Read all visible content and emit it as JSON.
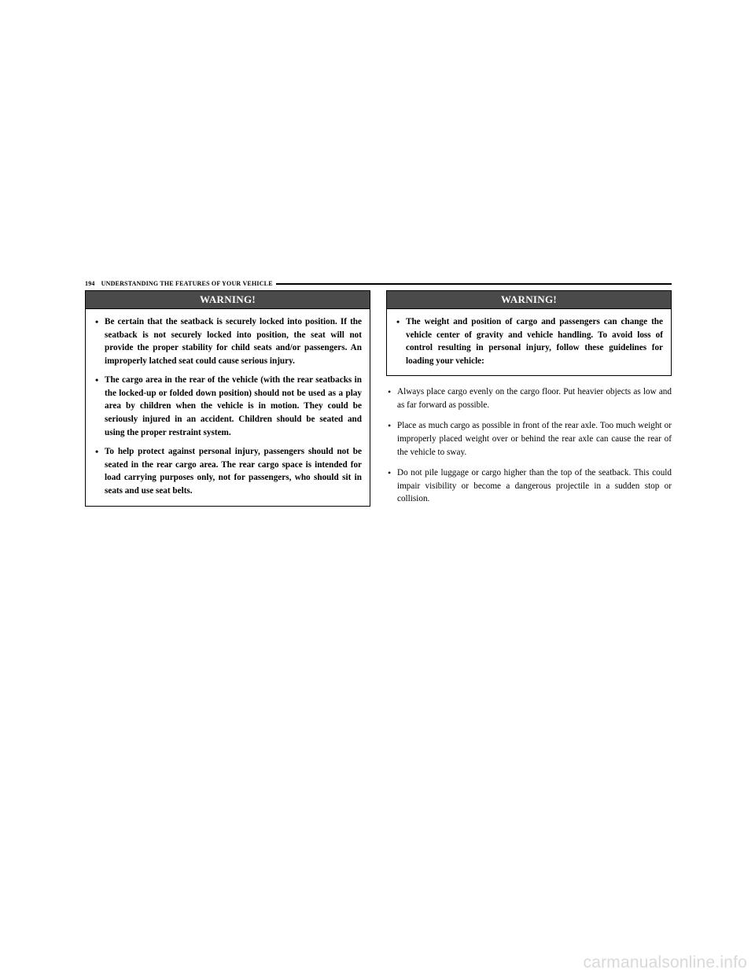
{
  "header": {
    "page_number": "194",
    "section_title": "UNDERSTANDING THE FEATURES OF YOUR VEHICLE"
  },
  "left_warning": {
    "title": "WARNING!",
    "items": [
      "Be certain that the seatback is securely locked into position. If the seatback is not securely locked into position, the seat will not provide the proper stability for child seats and/or passengers. An improperly latched seat could cause serious injury.",
      "The cargo area in the rear of the vehicle (with the rear seatbacks in the locked-up or folded down position) should not be used as a play area by children when the vehicle is in motion. They could be seriously injured in an accident. Children should be seated and using the proper restraint system.",
      "To help protect against personal injury, passengers should not be seated in the rear cargo area. The rear cargo space is intended for load carrying purposes only, not for passengers, who should sit in seats and use seat belts."
    ]
  },
  "right_warning": {
    "title": "WARNING!",
    "items": [
      "The weight and position of cargo and passengers can change the vehicle center of gravity and vehicle handling. To avoid loss of control resulting in personal injury, follow these guidelines for loading your vehicle:"
    ]
  },
  "right_guidelines": [
    "Always place cargo evenly on the cargo floor. Put heavier objects as low and as far forward as possible.",
    "Place as much cargo as possible in front of the rear axle. Too much weight or improperly placed weight over or behind the rear axle can cause the rear of the vehicle to sway.",
    "Do not pile luggage or cargo higher than the top of the seatback. This could impair visibility or become a dangerous projectile in a sudden stop or collision."
  ],
  "watermark": "carmanualsonline.info",
  "colors": {
    "warn_header_bg": "#4a4a4a",
    "warn_header_fg": "#ffffff",
    "text": "#000000",
    "watermark": "#d9d9d9"
  }
}
